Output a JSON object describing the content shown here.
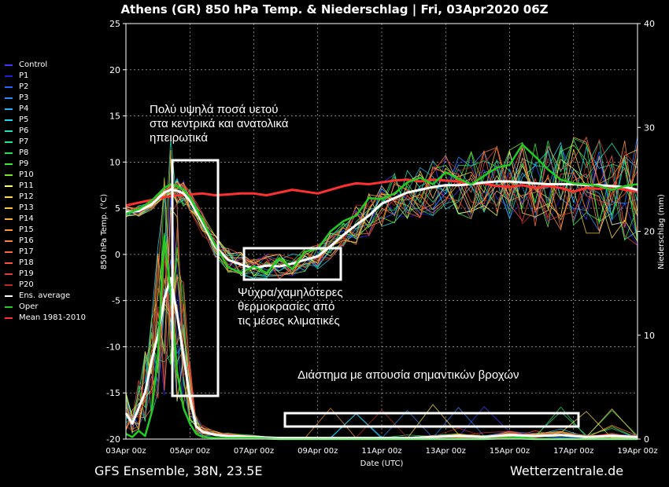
{
  "title": "Athens  (GR)  850 hPa Temp. & Niederschlag | Fri, 03Apr2020 06Z",
  "footer": {
    "left": "GFS Ensemble, 38N, 23.5E",
    "right": "Wetterzentrale.de"
  },
  "legend": [
    {
      "label": "Control",
      "color": "#3a3aff"
    },
    {
      "label": "P1",
      "color": "#1f1fd8"
    },
    {
      "label": "P2",
      "color": "#2266ff"
    },
    {
      "label": "P3",
      "color": "#2a8cff"
    },
    {
      "label": "P4",
      "color": "#22b4ff"
    },
    {
      "label": "P5",
      "color": "#22d8f0"
    },
    {
      "label": "P6",
      "color": "#22e0c0"
    },
    {
      "label": "P7",
      "color": "#22e890"
    },
    {
      "label": "P8",
      "color": "#22e060"
    },
    {
      "label": "P9",
      "color": "#3ce83c"
    },
    {
      "label": "P10",
      "color": "#7ae82a"
    },
    {
      "label": "P11",
      "color": "#ffff66"
    },
    {
      "label": "P12",
      "color": "#ffe04a"
    },
    {
      "label": "P13",
      "color": "#ffc83a"
    },
    {
      "label": "P14",
      "color": "#ffb03a"
    },
    {
      "label": "P15",
      "color": "#ff983a"
    },
    {
      "label": "P16",
      "color": "#ff8040"
    },
    {
      "label": "P17",
      "color": "#ff6840"
    },
    {
      "label": "P18",
      "color": "#ff5040"
    },
    {
      "label": "P19",
      "color": "#e03c3c"
    },
    {
      "label": "P20",
      "color": "#c02828"
    },
    {
      "label": "Ens. average",
      "color": "#ffffff"
    },
    {
      "label": "Oper",
      "color": "#22cc22"
    },
    {
      "label": "Mean 1981-2010",
      "color": "#ff3030"
    }
  ],
  "annotations": {
    "top": [
      "Πολύ υψηλά ποσά υετού",
      "στα κεντρικά και ανατολικά",
      "ηπειρωτικά"
    ],
    "middle": [
      "Ψύχρα/χαμηλότερες",
      "θερμοκρασίες από",
      "τις μέσες κλιματικές"
    ],
    "bottom": "Διάστημα με απουσία σημαντικών βροχών"
  },
  "chart_data": {
    "type": "line",
    "xlabel": "Date (UTC)",
    "ylabel": "850 hPa Temp. (°C)",
    "y2label": "Niederschlag (mm)",
    "ylim": [
      -20,
      25
    ],
    "y2lim": [
      0,
      40
    ],
    "yticks": [
      25,
      20,
      15,
      10,
      5,
      0,
      -5,
      -10,
      -15,
      -20
    ],
    "y2ticks": [
      40,
      30,
      20,
      10,
      0
    ],
    "xticks": [
      "03Apr 00z",
      "05Apr 00z",
      "07Apr 00z",
      "09Apr 00z",
      "11Apr 00z",
      "13Apr 00z",
      "15Apr 00z",
      "17Apr 00z",
      "19Apr 00z"
    ],
    "grid": true,
    "x_day": [
      0,
      0.5,
      1,
      1.5,
      1.75,
      2,
      2.25,
      2.5,
      3,
      3.5,
      4,
      4.5,
      5,
      5.5,
      6,
      6.5,
      7,
      7.5,
      8,
      8.5,
      9,
      9.5,
      10,
      10.5,
      11,
      11.5,
      12,
      12.5,
      13,
      13.5,
      14,
      14.5,
      15,
      15.5,
      16,
      16.5,
      17,
      17.5,
      18,
      18.5,
      19,
      19.5,
      20
    ],
    "series": [
      {
        "name": "Mean 1981-2010",
        "values": [
          5.3,
          5.6,
          5.9,
          6.2,
          6.3,
          6.4,
          6.4,
          6.5,
          6.6,
          6.4,
          6.5,
          6.6,
          6.6,
          6.4,
          6.7,
          7.0,
          6.8,
          6.6,
          7.0,
          7.4,
          7.7,
          7.6,
          7.8,
          8.0,
          8.1,
          7.9,
          8.1,
          8.0,
          7.9,
          7.6,
          7.7,
          7.4,
          7.3,
          7.5,
          7.2,
          7.4,
          7.2,
          6.8,
          7.2,
          7.1,
          7.3,
          7.0,
          6.8
        ]
      },
      {
        "name": "Ens. average",
        "values": [
          4.6,
          4.7,
          5.4,
          6.7,
          7.0,
          6.9,
          6.6,
          5.8,
          3.4,
          0.8,
          -0.6,
          -1.1,
          -1.5,
          -1.2,
          -1.3,
          -1.0,
          -0.6,
          -0.2,
          0.9,
          2.1,
          3.2,
          4.2,
          5.5,
          6.1,
          6.7,
          7.0,
          7.3,
          7.5,
          7.5,
          7.6,
          7.8,
          7.9,
          7.9,
          7.8,
          7.7,
          7.6,
          7.6,
          7.6,
          7.5,
          7.5,
          7.4,
          7.3,
          7.0
        ]
      },
      {
        "name": "Oper",
        "values": [
          4.4,
          4.9,
          5.8,
          7.2,
          7.6,
          7.4,
          7.0,
          6.2,
          3.7,
          1.0,
          -1.4,
          -2.0,
          -1.3,
          -2.0,
          -0.4,
          -1.6,
          0.3,
          0.6,
          2.5,
          3.6,
          4.2,
          6.1,
          6.0,
          6.6,
          7.8,
          8.3,
          7.6,
          8.9,
          8.2,
          7.6,
          8.5,
          9.4,
          9.7,
          11.9,
          10.6,
          9.2,
          8.1,
          7.7,
          7.6,
          7.4,
          7.0,
          7.4,
          7.6
        ]
      }
    ],
    "precip_x_day": [
      0,
      0.25,
      0.5,
      0.75,
      1,
      1.25,
      1.5,
      1.75,
      2,
      2.25,
      2.5,
      2.75,
      3,
      3.5,
      4,
      5,
      6,
      7,
      8,
      9,
      10,
      11,
      12,
      13,
      14,
      15,
      16,
      17,
      18,
      19,
      20
    ],
    "precip_series": [
      {
        "name": "Ens. average",
        "values": [
          2.5,
          1.5,
          3.0,
          4.5,
          7.5,
          10.0,
          13.5,
          15.5,
          12.0,
          8.0,
          4.0,
          1.2,
          0.7,
          0.4,
          0.3,
          0.2,
          0.1,
          0.1,
          0.1,
          0.1,
          0.1,
          0.1,
          0.2,
          0.3,
          0.2,
          0.4,
          0.3,
          0.4,
          0.2,
          0.3,
          0.2
        ]
      },
      {
        "name": "Oper",
        "values": [
          0.5,
          0.2,
          0.8,
          0.3,
          2.5,
          8.0,
          19.5,
          14.0,
          6.5,
          3.0,
          1.5,
          0.5,
          0.2,
          0.1,
          0.1,
          0.1,
          0.0,
          0.0,
          0.0,
          0.0,
          0.0,
          0.0,
          0.0,
          0.0,
          0.0,
          0.1,
          0.0,
          0.0,
          0.0,
          0.0,
          0.0
        ]
      }
    ]
  }
}
